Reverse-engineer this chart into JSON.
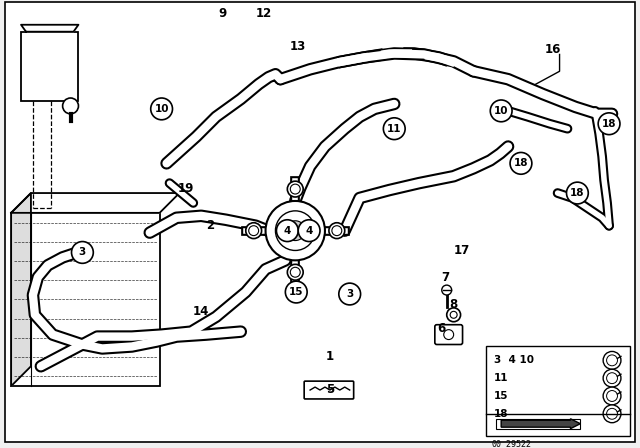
{
  "bg_color": "#f0f0f0",
  "line_color": "#000000",
  "diagram_number": "00_29522"
}
